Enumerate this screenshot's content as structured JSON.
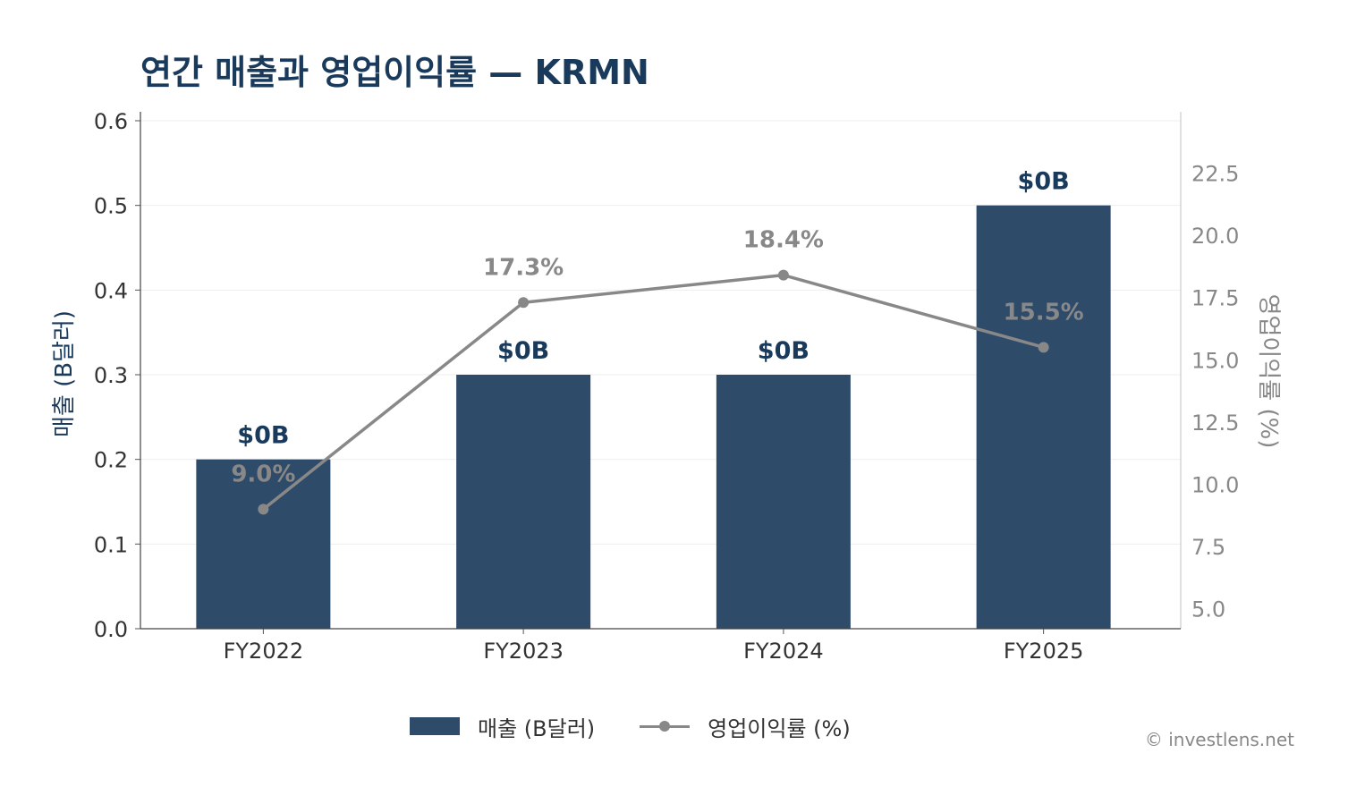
{
  "title": "연간 매출과 영업이익률 — KRMN",
  "credit": "© investlens.net",
  "legend": {
    "revenue": "매출 (B달러)",
    "margin": "영업이익률 (%)"
  },
  "colors": {
    "bar": "#2f4b6a",
    "line": "#888888",
    "title": "#1a3a5c",
    "grid": "#eeeeee"
  },
  "chart_data": {
    "type": "bar",
    "categories": [
      "FY2022",
      "FY2023",
      "FY2024",
      "FY2025"
    ],
    "series": [
      {
        "name": "매출 (B달러)",
        "type": "bar",
        "axis": "left",
        "values": [
          0.2,
          0.3,
          0.3,
          0.5
        ],
        "labels": [
          "$0B",
          "$0B",
          "$0B",
          "$0B"
        ]
      },
      {
        "name": "영업이익률 (%)",
        "type": "line",
        "axis": "right",
        "values": [
          9.0,
          17.3,
          18.4,
          15.5
        ],
        "labels": [
          "9.0%",
          "17.3%",
          "18.4%",
          "15.5%"
        ]
      }
    ],
    "ylabel": "매출 (B달러)",
    "y2label": "영업이익률 (%)",
    "ylim": [
      0,
      0.6
    ],
    "yticks": [
      "0.0",
      "0.1",
      "0.2",
      "0.3",
      "0.4",
      "0.5",
      "0.6"
    ],
    "y2lim": [
      4.2,
      24.6
    ],
    "y2ticks": [
      "5.0",
      "7.5",
      "10.0",
      "12.5",
      "15.0",
      "17.5",
      "20.0",
      "22.5"
    ],
    "grid": true
  }
}
